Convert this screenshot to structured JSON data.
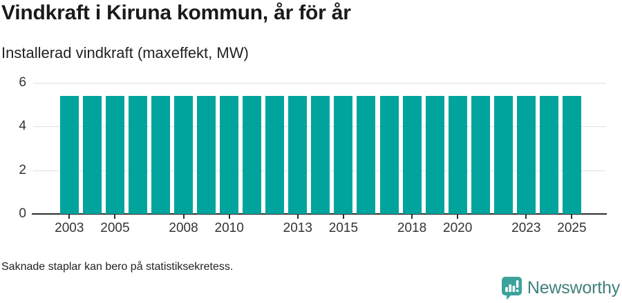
{
  "header": {
    "title": "Vindkraft i Kiruna kommun, år för år",
    "subtitle": "Installerad vindkraft (maxeffekt, MW)"
  },
  "footer": {
    "note": "Saknade staplar kan bero på statistiksekretess.",
    "brand_name": "Newsworthy",
    "brand_icon": "bar-chart-speech-bubble-icon"
  },
  "colors": {
    "bar": "#00A49C",
    "gridline": "#e0e0e0",
    "axis": "#2e2e2e",
    "axis_text": "#333333",
    "title_text": "#1a1a1a",
    "logo_icon": "#3BA39B",
    "logo_text": "#41807B"
  },
  "chart_data": {
    "type": "bar",
    "title": "Vindkraft i Kiruna kommun, år för år",
    "subtitle": "Installerad vindkraft (maxeffekt, MW)",
    "categories": [
      2003,
      2004,
      2005,
      2006,
      2007,
      2008,
      2009,
      2010,
      2011,
      2012,
      2013,
      2014,
      2015,
      2016,
      2017,
      2018,
      2019,
      2020,
      2021,
      2022,
      2023,
      2024,
      2025
    ],
    "values": [
      5.4,
      5.4,
      5.4,
      5.4,
      5.4,
      5.4,
      5.4,
      5.4,
      5.4,
      5.4,
      5.4,
      5.4,
      5.4,
      5.4,
      5.4,
      5.4,
      5.4,
      5.4,
      5.4,
      5.4,
      5.4,
      5.4,
      5.4
    ],
    "series_name": "Installerad vindkraft (maxeffekt, MW)",
    "xticks": [
      2003,
      2005,
      2008,
      2010,
      2013,
      2015,
      2018,
      2020,
      2023,
      2025
    ],
    "yticks": [
      0,
      2,
      4,
      6
    ],
    "ylim": [
      0,
      6
    ],
    "xlabel": "",
    "ylabel": "",
    "grid": "horizontal",
    "legend": "none",
    "note": "Saknade staplar kan bero på statistiksekretess."
  }
}
